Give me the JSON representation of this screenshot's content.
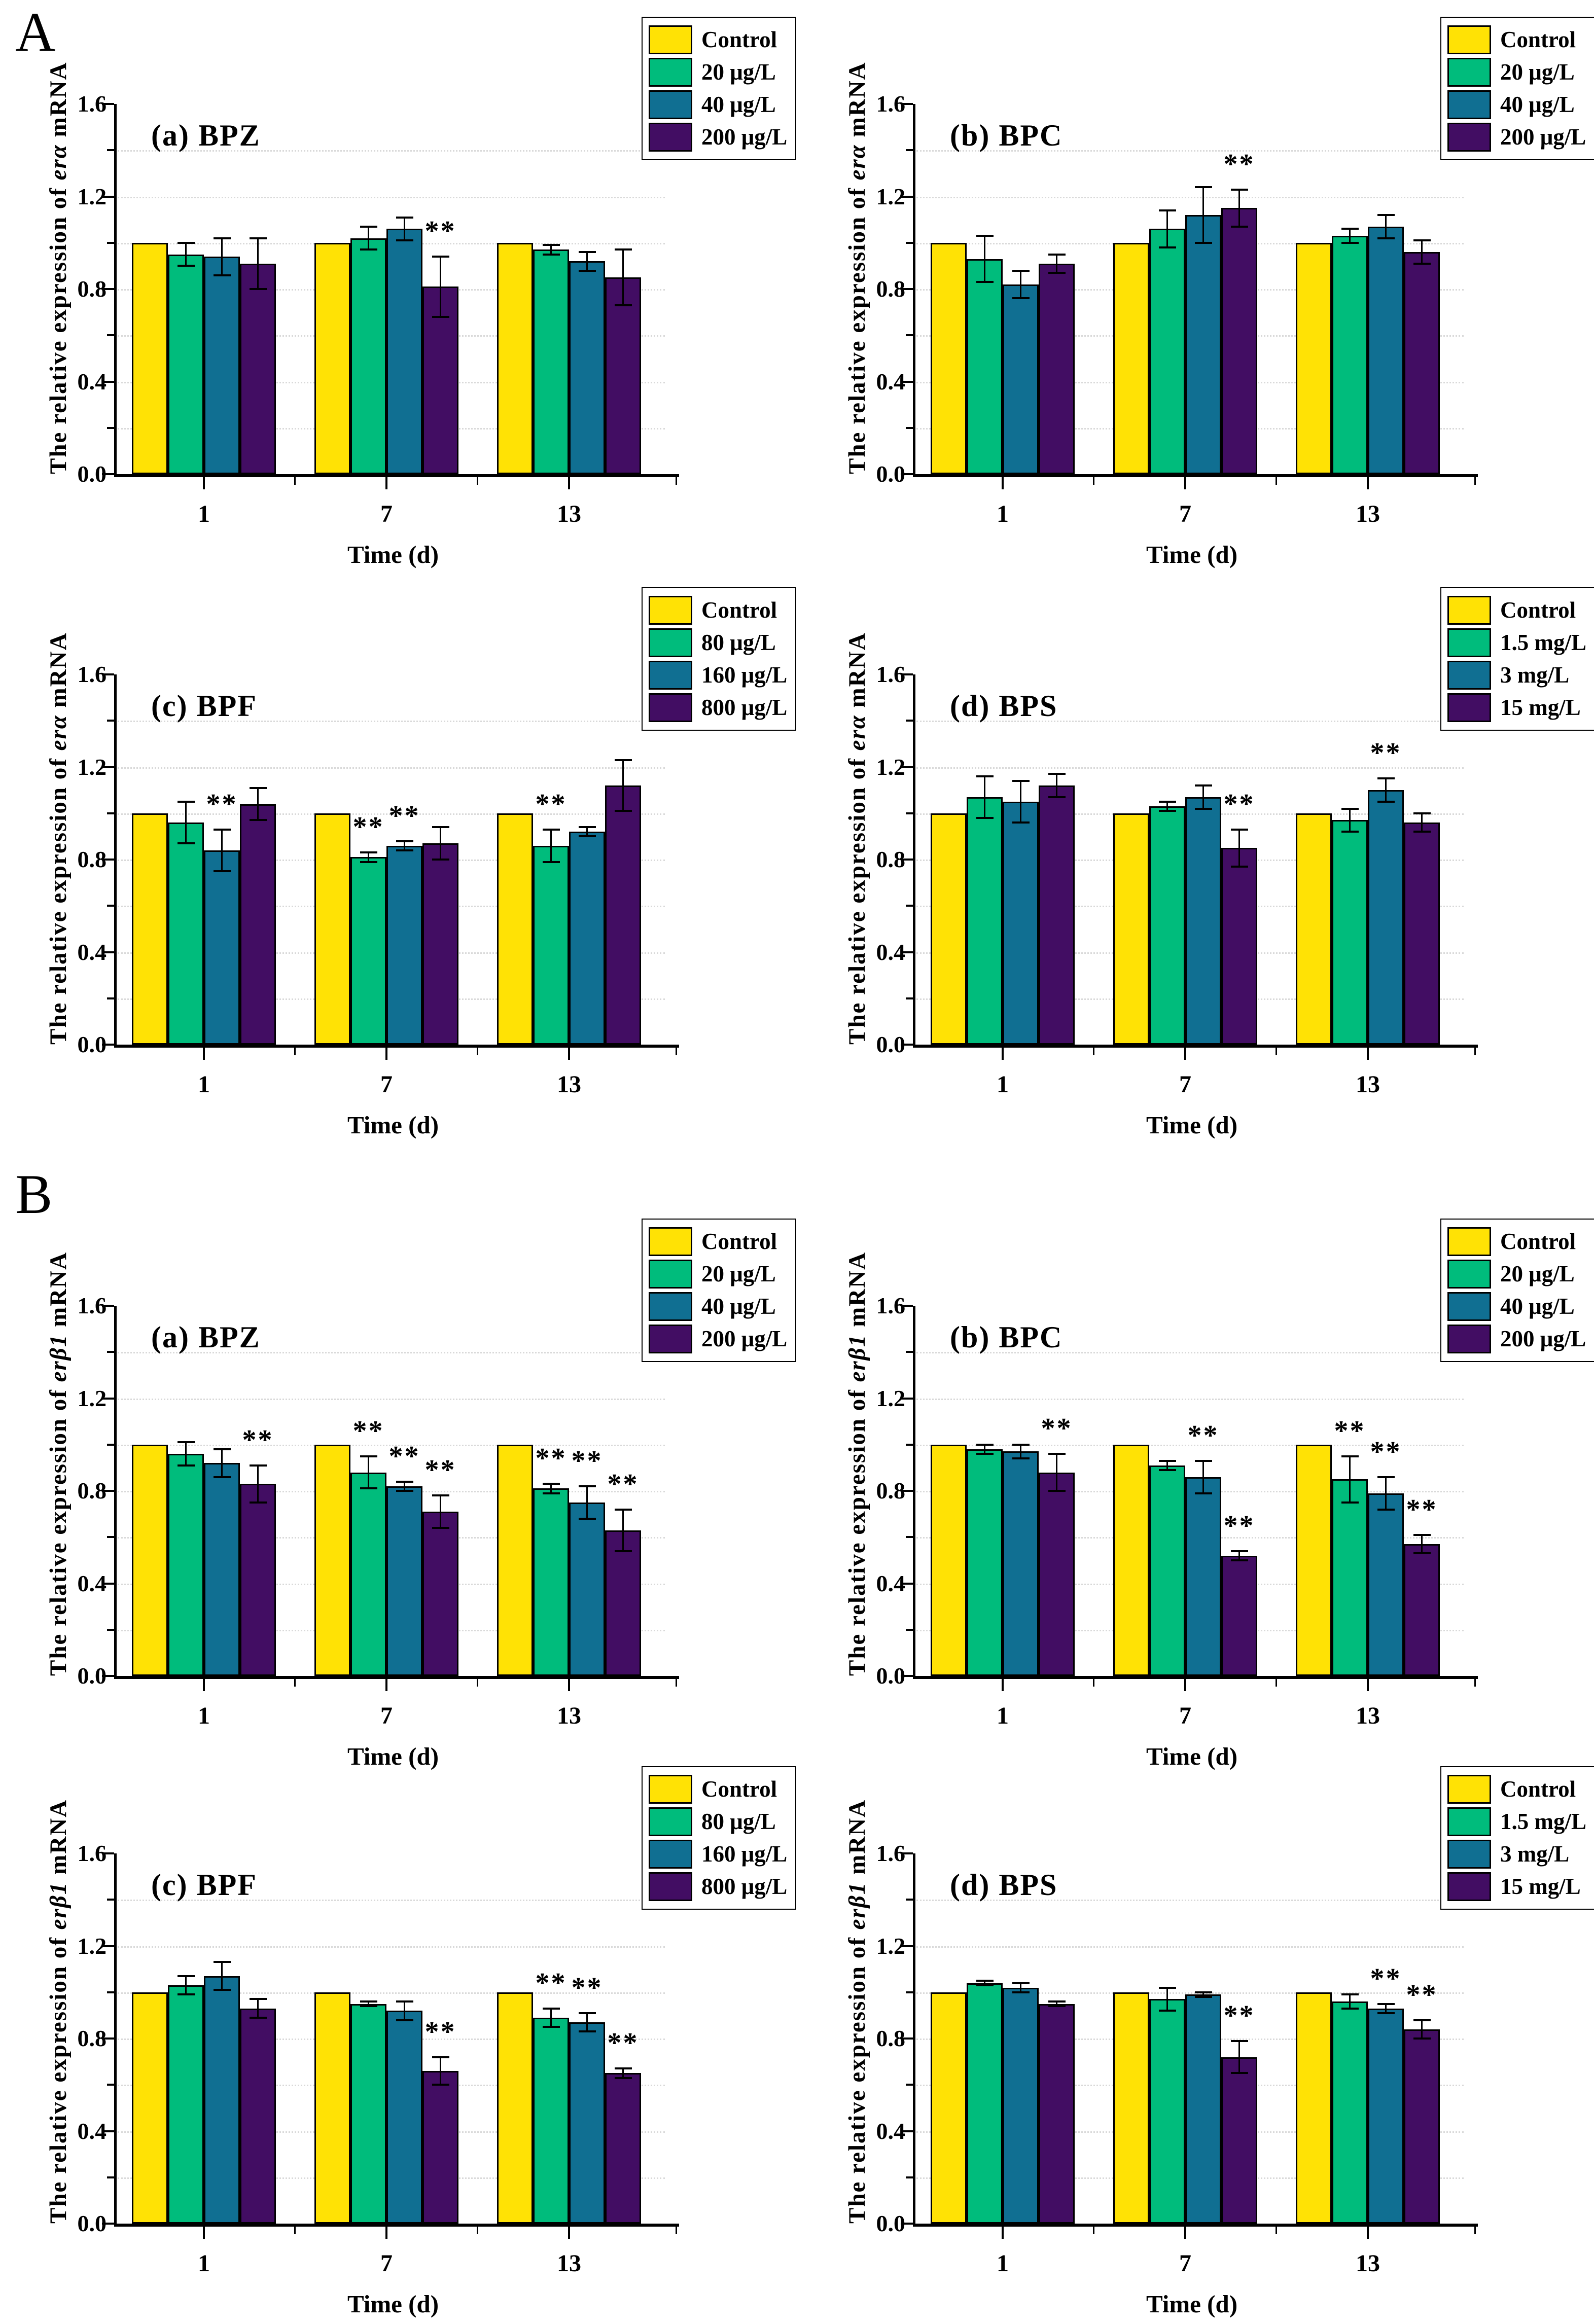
{
  "figure": {
    "section_a": "A",
    "section_b": "B"
  },
  "colors": {
    "series": [
      "#FFE205",
      "#00BC7C",
      "#106F92",
      "#420D63"
    ],
    "axis": "#000000",
    "grid": "#d9d9d9",
    "background": "#ffffff"
  },
  "axis": {
    "x_label": "Time (d)",
    "x_categories": [
      "1",
      "7",
      "13"
    ],
    "y_ticks": [
      "0.0",
      "0.4",
      "0.8",
      "1.2",
      "1.6"
    ],
    "ylim": [
      0,
      1.6
    ]
  },
  "chart_data": [
    {
      "type": "bar",
      "panel": "A",
      "title": "(a) BPZ",
      "ylabel_prefix": "The relative expression of ",
      "gene": "erα",
      "ylabel_suffix": " mRNA",
      "xlabel": "Time (d)",
      "categories": [
        "1",
        "7",
        "13"
      ],
      "y_ticks": [
        "0.0",
        "0.4",
        "0.8",
        "1.2",
        "1.6"
      ],
      "ylim": [
        0,
        1.6
      ],
      "series": [
        {
          "name": "Control",
          "values": [
            1.0,
            1.0,
            1.0
          ],
          "err": [
            0,
            0,
            0
          ],
          "sig": [
            "",
            "",
            ""
          ]
        },
        {
          "name": "20 μg/L",
          "values": [
            0.95,
            1.02,
            0.97
          ],
          "err": [
            0.05,
            0.05,
            0.02
          ],
          "sig": [
            "",
            "",
            ""
          ]
        },
        {
          "name": "40 μg/L",
          "values": [
            0.94,
            1.06,
            0.92
          ],
          "err": [
            0.08,
            0.05,
            0.04
          ],
          "sig": [
            "",
            "",
            ""
          ]
        },
        {
          "name": "200 μg/L",
          "values": [
            0.91,
            0.81,
            0.85
          ],
          "err": [
            0.11,
            0.13,
            0.12
          ],
          "sig": [
            "",
            "**",
            ""
          ]
        }
      ]
    },
    {
      "type": "bar",
      "panel": "A",
      "title": "(b) BPC",
      "ylabel_prefix": "The relative expression of ",
      "gene": "erα",
      "ylabel_suffix": " mRNA",
      "xlabel": "Time (d)",
      "categories": [
        "1",
        "7",
        "13"
      ],
      "y_ticks": [
        "0.0",
        "0.4",
        "0.8",
        "1.2",
        "1.6"
      ],
      "ylim": [
        0,
        1.6
      ],
      "series": [
        {
          "name": "Control",
          "values": [
            1.0,
            1.0,
            1.0
          ],
          "err": [
            0,
            0,
            0
          ],
          "sig": [
            "",
            "",
            ""
          ]
        },
        {
          "name": "20 μg/L",
          "values": [
            0.93,
            1.06,
            1.03
          ],
          "err": [
            0.1,
            0.08,
            0.03
          ],
          "sig": [
            "",
            "",
            ""
          ]
        },
        {
          "name": "40 μg/L",
          "values": [
            0.82,
            1.12,
            1.07
          ],
          "err": [
            0.06,
            0.12,
            0.05
          ],
          "sig": [
            "",
            "",
            ""
          ]
        },
        {
          "name": "200 μg/L",
          "values": [
            0.91,
            1.15,
            0.96
          ],
          "err": [
            0.04,
            0.08,
            0.05
          ],
          "sig": [
            "",
            "**",
            ""
          ]
        }
      ]
    },
    {
      "type": "bar",
      "panel": "A",
      "title": "(c) BPF",
      "ylabel_prefix": "The relative expression of ",
      "gene": "erα",
      "ylabel_suffix": " mRNA",
      "xlabel": "Time (d)",
      "categories": [
        "1",
        "7",
        "13"
      ],
      "y_ticks": [
        "0.0",
        "0.4",
        "0.8",
        "1.2",
        "1.6"
      ],
      "ylim": [
        0,
        1.6
      ],
      "series": [
        {
          "name": "Control",
          "values": [
            1.0,
            1.0,
            1.0
          ],
          "err": [
            0,
            0,
            0
          ],
          "sig": [
            "",
            "",
            ""
          ]
        },
        {
          "name": "80 μg/L",
          "values": [
            0.96,
            0.81,
            0.86
          ],
          "err": [
            0.09,
            0.02,
            0.07
          ],
          "sig": [
            "",
            "**",
            "**"
          ]
        },
        {
          "name": "160 μg/L",
          "values": [
            0.84,
            0.86,
            0.92
          ],
          "err": [
            0.09,
            0.02,
            0.02
          ],
          "sig": [
            "**",
            "**",
            ""
          ]
        },
        {
          "name": "800 μg/L",
          "values": [
            1.04,
            0.87,
            1.12
          ],
          "err": [
            0.07,
            0.07,
            0.11
          ],
          "sig": [
            "",
            "",
            ""
          ]
        }
      ]
    },
    {
      "type": "bar",
      "panel": "A",
      "title": "(d) BPS",
      "ylabel_prefix": "The relative expression of ",
      "gene": "erα",
      "ylabel_suffix": " mRNA",
      "xlabel": "Time (d)",
      "categories": [
        "1",
        "7",
        "13"
      ],
      "y_ticks": [
        "0.0",
        "0.4",
        "0.8",
        "1.2",
        "1.6"
      ],
      "ylim": [
        0,
        1.6
      ],
      "series": [
        {
          "name": "Control",
          "values": [
            1.0,
            1.0,
            1.0
          ],
          "err": [
            0,
            0,
            0
          ],
          "sig": [
            "",
            "",
            ""
          ]
        },
        {
          "name": "1.5 mg/L",
          "values": [
            1.07,
            1.03,
            0.97
          ],
          "err": [
            0.09,
            0.02,
            0.05
          ],
          "sig": [
            "",
            "",
            ""
          ]
        },
        {
          "name": "3 mg/L",
          "values": [
            1.05,
            1.07,
            1.1
          ],
          "err": [
            0.09,
            0.05,
            0.05
          ],
          "sig": [
            "",
            "",
            "**"
          ]
        },
        {
          "name": "15 mg/L",
          "values": [
            1.12,
            0.85,
            0.96
          ],
          "err": [
            0.05,
            0.08,
            0.04
          ],
          "sig": [
            "",
            "**",
            ""
          ]
        }
      ]
    },
    {
      "type": "bar",
      "panel": "B",
      "title": "(a) BPZ",
      "ylabel_prefix": "The relative expression of ",
      "gene": "erβ1",
      "ylabel_suffix": " mRNA",
      "xlabel": "Time (d)",
      "categories": [
        "1",
        "7",
        "13"
      ],
      "y_ticks": [
        "0.0",
        "0.4",
        "0.8",
        "1.2",
        "1.6"
      ],
      "ylim": [
        0,
        1.6
      ],
      "series": [
        {
          "name": "Control",
          "values": [
            1.0,
            1.0,
            1.0
          ],
          "err": [
            0,
            0,
            0
          ],
          "sig": [
            "",
            "",
            ""
          ]
        },
        {
          "name": "20 μg/L",
          "values": [
            0.96,
            0.88,
            0.81
          ],
          "err": [
            0.05,
            0.07,
            0.02
          ],
          "sig": [
            "",
            "**",
            "**"
          ]
        },
        {
          "name": "40 μg/L",
          "values": [
            0.92,
            0.82,
            0.75
          ],
          "err": [
            0.06,
            0.02,
            0.07
          ],
          "sig": [
            "",
            "**",
            "**"
          ]
        },
        {
          "name": "200 μg/L",
          "values": [
            0.83,
            0.71,
            0.63
          ],
          "err": [
            0.08,
            0.07,
            0.09
          ],
          "sig": [
            "**",
            "**",
            "**"
          ]
        }
      ]
    },
    {
      "type": "bar",
      "panel": "B",
      "title": "(b) BPC",
      "ylabel_prefix": "The relative expression of ",
      "gene": "erβ1",
      "ylabel_suffix": " mRNA",
      "xlabel": "Time (d)",
      "categories": [
        "1",
        "7",
        "13"
      ],
      "y_ticks": [
        "0.0",
        "0.4",
        "0.8",
        "1.2",
        "1.6"
      ],
      "ylim": [
        0,
        1.6
      ],
      "series": [
        {
          "name": "Control",
          "values": [
            1.0,
            1.0,
            1.0
          ],
          "err": [
            0,
            0,
            0
          ],
          "sig": [
            "",
            "",
            ""
          ]
        },
        {
          "name": "20 μg/L",
          "values": [
            0.98,
            0.91,
            0.85
          ],
          "err": [
            0.02,
            0.02,
            0.1
          ],
          "sig": [
            "",
            "",
            "**"
          ]
        },
        {
          "name": "40 μg/L",
          "values": [
            0.97,
            0.86,
            0.79
          ],
          "err": [
            0.03,
            0.07,
            0.07
          ],
          "sig": [
            "",
            "**",
            "**"
          ]
        },
        {
          "name": "200 μg/L",
          "values": [
            0.88,
            0.52,
            0.57
          ],
          "err": [
            0.08,
            0.02,
            0.04
          ],
          "sig": [
            "**",
            "**",
            "**"
          ]
        }
      ]
    },
    {
      "type": "bar",
      "panel": "B",
      "title": "(c) BPF",
      "ylabel_prefix": "The relative expression of ",
      "gene": "erβ1",
      "ylabel_suffix": " mRNA",
      "xlabel": "Time (d)",
      "categories": [
        "1",
        "7",
        "13"
      ],
      "y_ticks": [
        "0.0",
        "0.4",
        "0.8",
        "1.2",
        "1.6"
      ],
      "ylim": [
        0,
        1.6
      ],
      "series": [
        {
          "name": "Control",
          "values": [
            1.0,
            1.0,
            1.0
          ],
          "err": [
            0,
            0,
            0
          ],
          "sig": [
            "",
            "",
            ""
          ]
        },
        {
          "name": "80 μg/L",
          "values": [
            1.03,
            0.95,
            0.89
          ],
          "err": [
            0.04,
            0.01,
            0.04
          ],
          "sig": [
            "",
            "",
            "**"
          ]
        },
        {
          "name": "160 μg/L",
          "values": [
            1.07,
            0.92,
            0.87
          ],
          "err": [
            0.06,
            0.04,
            0.04
          ],
          "sig": [
            "",
            "",
            "**"
          ]
        },
        {
          "name": "800 μg/L",
          "values": [
            0.93,
            0.66,
            0.65
          ],
          "err": [
            0.04,
            0.06,
            0.02
          ],
          "sig": [
            "",
            "**",
            "**"
          ]
        }
      ]
    },
    {
      "type": "bar",
      "panel": "B",
      "title": "(d) BPS",
      "ylabel_prefix": "The relative expression of ",
      "gene": "erβ1",
      "ylabel_suffix": " mRNA",
      "xlabel": "Time (d)",
      "categories": [
        "1",
        "7",
        "13"
      ],
      "y_ticks": [
        "0.0",
        "0.4",
        "0.8",
        "1.2",
        "1.6"
      ],
      "ylim": [
        0,
        1.6
      ],
      "series": [
        {
          "name": "Control",
          "values": [
            1.0,
            1.0,
            1.0
          ],
          "err": [
            0,
            0,
            0
          ],
          "sig": [
            "",
            "",
            ""
          ]
        },
        {
          "name": "1.5 mg/L",
          "values": [
            1.04,
            0.97,
            0.96
          ],
          "err": [
            0.01,
            0.05,
            0.03
          ],
          "sig": [
            "",
            "",
            ""
          ]
        },
        {
          "name": "3 mg/L",
          "values": [
            1.02,
            0.99,
            0.93
          ],
          "err": [
            0.02,
            0.01,
            0.02
          ],
          "sig": [
            "",
            "",
            "**"
          ]
        },
        {
          "name": "15 mg/L",
          "values": [
            0.95,
            0.72,
            0.84
          ],
          "err": [
            0.01,
            0.07,
            0.04
          ],
          "sig": [
            "",
            "**",
            "**"
          ]
        }
      ]
    }
  ]
}
